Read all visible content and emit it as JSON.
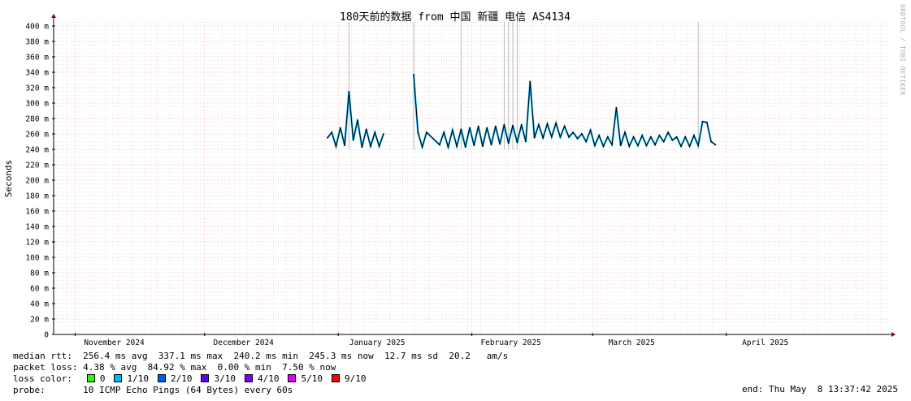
{
  "chart_data": {
    "type": "line",
    "title": "180天前的数据 from 中国 新疆 电信 AS4134",
    "ylabel": "Seconds",
    "ylim": [
      0,
      0.41
    ],
    "y_ticks": [
      {
        "value": 0,
        "label": "0"
      },
      {
        "value": 0.02,
        "label": "20 m"
      },
      {
        "value": 0.04,
        "label": "40 m"
      },
      {
        "value": 0.06,
        "label": "60 m"
      },
      {
        "value": 0.08,
        "label": "80 m"
      },
      {
        "value": 0.1,
        "label": "100 m"
      },
      {
        "value": 0.12,
        "label": "120 m"
      },
      {
        "value": 0.14,
        "label": "140 m"
      },
      {
        "value": 0.16,
        "label": "160 m"
      },
      {
        "value": 0.18,
        "label": "180 m"
      },
      {
        "value": 0.2,
        "label": "200 m"
      },
      {
        "value": 0.22,
        "label": "220 m"
      },
      {
        "value": 0.24,
        "label": "240 m"
      },
      {
        "value": 0.26,
        "label": "260 m"
      },
      {
        "value": 0.28,
        "label": "280 m"
      },
      {
        "value": 0.3,
        "label": "300 m"
      },
      {
        "value": 0.32,
        "label": "320 m"
      },
      {
        "value": 0.34,
        "label": "340 m"
      },
      {
        "value": 0.36,
        "label": "360 m"
      },
      {
        "value": 0.38,
        "label": "380 m"
      },
      {
        "value": 0.4,
        "label": "400 m"
      }
    ],
    "xlim": [
      "2024-10-27",
      "2025-05-08"
    ],
    "x_ticks": [
      {
        "date": "2024-11-01",
        "label": "November 2024"
      },
      {
        "date": "2024-12-01",
        "label": "December 2024"
      },
      {
        "date": "2025-01-01",
        "label": "January 2025"
      },
      {
        "date": "2025-02-01",
        "label": "February 2025"
      },
      {
        "date": "2025-03-01",
        "label": "March 2025"
      },
      {
        "date": "2025-04-01",
        "label": "April 2025"
      }
    ],
    "grid": true,
    "series": [
      {
        "color": "#000000",
        "points": [
          [
            "2024-12-29",
            0.255
          ],
          [
            "2024-12-30",
            0.262
          ],
          [
            "2024-12-31",
            0.244
          ],
          [
            "2025-01-01",
            0.268
          ],
          [
            "2025-01-02",
            0.245
          ],
          [
            "2025-01-03",
            0.315
          ],
          [
            "2025-01-04",
            0.252
          ],
          [
            "2025-01-05",
            0.278
          ],
          [
            "2025-01-06",
            0.243
          ],
          [
            "2025-01-07",
            0.266
          ],
          [
            "2025-01-08",
            0.244
          ],
          [
            "2025-01-09",
            0.262
          ],
          [
            "2025-01-10",
            0.244
          ],
          [
            "2025-01-11",
            0.26
          ],
          [
            "2025-01-18",
            0.337
          ],
          [
            "2025-01-19",
            0.262
          ],
          [
            "2025-01-20",
            0.243
          ],
          [
            "2025-01-21",
            0.262
          ],
          [
            "2025-01-24",
            0.246
          ],
          [
            "2025-01-25",
            0.262
          ],
          [
            "2025-01-26",
            0.243
          ],
          [
            "2025-01-27",
            0.265
          ],
          [
            "2025-01-28",
            0.244
          ],
          [
            "2025-01-29",
            0.266
          ],
          [
            "2025-01-30",
            0.243
          ],
          [
            "2025-01-31",
            0.268
          ],
          [
            "2025-02-01",
            0.245
          ],
          [
            "2025-02-02",
            0.27
          ],
          [
            "2025-02-03",
            0.244
          ],
          [
            "2025-02-04",
            0.268
          ],
          [
            "2025-02-05",
            0.246
          ],
          [
            "2025-02-06",
            0.27
          ],
          [
            "2025-02-07",
            0.247
          ],
          [
            "2025-02-08",
            0.272
          ],
          [
            "2025-02-09",
            0.248
          ],
          [
            "2025-02-10",
            0.271
          ],
          [
            "2025-02-11",
            0.249
          ],
          [
            "2025-02-12",
            0.272
          ],
          [
            "2025-02-13",
            0.25
          ],
          [
            "2025-02-14",
            0.328
          ],
          [
            "2025-02-15",
            0.255
          ],
          [
            "2025-02-16",
            0.272
          ],
          [
            "2025-02-17",
            0.255
          ],
          [
            "2025-02-18",
            0.273
          ],
          [
            "2025-02-19",
            0.256
          ],
          [
            "2025-02-20",
            0.274
          ],
          [
            "2025-02-21",
            0.256
          ],
          [
            "2025-02-22",
            0.27
          ],
          [
            "2025-02-23",
            0.256
          ],
          [
            "2025-02-24",
            0.262
          ],
          [
            "2025-02-25",
            0.254
          ],
          [
            "2025-02-26",
            0.26
          ],
          [
            "2025-02-27",
            0.25
          ],
          [
            "2025-02-28",
            0.265
          ],
          [
            "2025-03-01",
            0.245
          ],
          [
            "2025-03-02",
            0.258
          ],
          [
            "2025-03-03",
            0.244
          ],
          [
            "2025-03-04",
            0.256
          ],
          [
            "2025-03-05",
            0.246
          ],
          [
            "2025-03-06",
            0.294
          ],
          [
            "2025-03-07",
            0.245
          ],
          [
            "2025-03-08",
            0.262
          ],
          [
            "2025-03-09",
            0.244
          ],
          [
            "2025-03-10",
            0.256
          ],
          [
            "2025-03-11",
            0.245
          ],
          [
            "2025-03-12",
            0.258
          ],
          [
            "2025-03-13",
            0.245
          ],
          [
            "2025-03-14",
            0.256
          ],
          [
            "2025-03-15",
            0.246
          ],
          [
            "2025-03-16",
            0.258
          ],
          [
            "2025-03-17",
            0.25
          ],
          [
            "2025-03-18",
            0.262
          ],
          [
            "2025-03-19",
            0.252
          ],
          [
            "2025-03-20",
            0.256
          ],
          [
            "2025-03-21",
            0.244
          ],
          [
            "2025-03-22",
            0.256
          ],
          [
            "2025-03-23",
            0.244
          ],
          [
            "2025-03-24",
            0.258
          ],
          [
            "2025-03-25",
            0.245
          ],
          [
            "2025-03-26",
            0.276
          ],
          [
            "2025-03-27",
            0.275
          ],
          [
            "2025-03-28",
            0.25
          ],
          [
            "2025-03-29",
            0.246
          ]
        ]
      }
    ],
    "loss_dates": [
      "2025-01-03",
      "2025-01-18",
      "2025-01-29",
      "2025-02-08",
      "2025-02-09",
      "2025-02-10",
      "2025-02-11",
      "2025-03-25"
    ]
  },
  "side_label": "RRDTOOL / TOBI OETIKER",
  "stats": {
    "median_rtt": "median rtt:  256.4 ms avg  337.1 ms max  240.2 ms min  245.3 ms now  12.7 ms sd  20.2   am/s",
    "packet_loss": "packet loss: 4.38 % avg  84.92 % max  0.00 % min  7.50 % now",
    "loss_color_label": "loss color:",
    "loss_colors": [
      {
        "label": "0",
        "color": "#26ff00"
      },
      {
        "label": "1/10",
        "color": "#00b8ff"
      },
      {
        "label": "2/10",
        "color": "#0059ff"
      },
      {
        "label": "3/10",
        "color": "#5e00ff"
      },
      {
        "label": "4/10",
        "color": "#7e00ff"
      },
      {
        "label": "5/10",
        "color": "#dd00ff"
      },
      {
        "label": "9/10",
        "color": "#ff0000"
      }
    ],
    "probe": "probe:       10 ICMP Echo Pings (64 Bytes) every 60s",
    "end": "end: Thu May  8 13:37:42 2025"
  }
}
